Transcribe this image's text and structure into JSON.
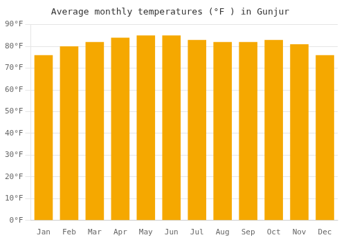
{
  "chart_data": {
    "type": "bar",
    "title": "Average monthly temperatures (°F ) in Gunjur",
    "categories": [
      "Jan",
      "Feb",
      "Mar",
      "Apr",
      "May",
      "Jun",
      "Jul",
      "Aug",
      "Sep",
      "Oct",
      "Nov",
      "Dec"
    ],
    "values": [
      76,
      80,
      82,
      84,
      85,
      85,
      83,
      82,
      82,
      83,
      81,
      76
    ],
    "color": "#F5A800",
    "ylim": [
      0,
      90
    ],
    "yticks": [
      {
        "value": 0,
        "label": "0°F"
      },
      {
        "value": 10,
        "label": "10°F"
      },
      {
        "value": 20,
        "label": "20°F"
      },
      {
        "value": 30,
        "label": "30°F"
      },
      {
        "value": 40,
        "label": "40°F"
      },
      {
        "value": 50,
        "label": "50°F"
      },
      {
        "value": 60,
        "label": "60°F"
      },
      {
        "value": 70,
        "label": "70°F"
      },
      {
        "value": 80,
        "label": "80°F"
      },
      {
        "value": 90,
        "label": "90°F"
      }
    ],
    "grid": true
  }
}
